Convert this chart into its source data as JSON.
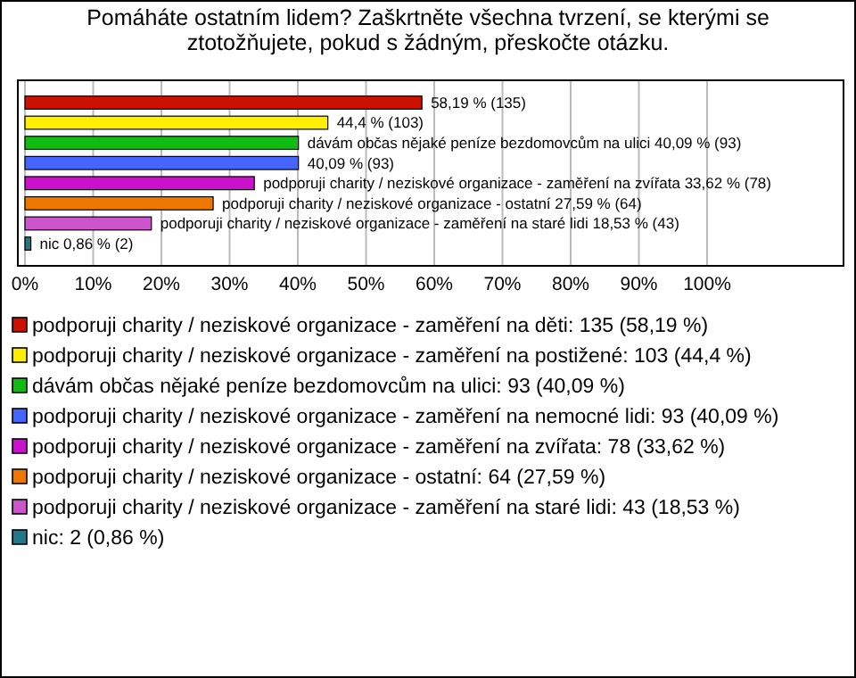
{
  "chart_data": {
    "type": "bar",
    "orientation": "horizontal",
    "title": "Pomáháte ostatním lidem? Zaškrtněte všechna tvrzení, se kterými se ztotožňujete, pokud s žádným, přeskočte otázku.",
    "categories": [
      null
    ],
    "series": [
      {
        "name": "podporuji charity / neziskové organizace - zaměření na děti: 135 (58,19 %)",
        "color": "#cc1100",
        "values": [
          58.19
        ],
        "value_labels": [
          "58,19 % (135)"
        ]
      },
      {
        "name": "podporuji charity / neziskové organizace - zaměření na postižené: 103 (44,4 %)",
        "color": "#ffee00",
        "values": [
          44.4
        ],
        "value_labels": [
          "44,4 % (103)"
        ]
      },
      {
        "name": "dávám občas nějaké peníze bezdomovcům na ulici: 93 (40,09 %)",
        "color": "#11bb11",
        "values": [
          40.09
        ],
        "value_labels": [
          "dávám občas nějaké peníze bezdomovcům na ulici 40,09 % (93)"
        ]
      },
      {
        "name": "podporuji charity / neziskové organizace - zaměření na nemocné lidi: 93 (40,09 %)",
        "color": "#4466ff",
        "values": [
          40.09
        ],
        "value_labels": [
          "40,09 % (93)"
        ]
      },
      {
        "name": "podporuji charity / neziskové organizace - zaměření na zvířata: 78 (33,62 %)",
        "color": "#cc11cc",
        "values": [
          33.62
        ],
        "value_labels": [
          "podporuji charity / neziskové organizace - zaměření na zvířata 33,62 % (78)"
        ]
      },
      {
        "name": "podporuji charity / neziskové organizace - ostatní: 64 (27,59 %)",
        "color": "#ee7700",
        "values": [
          27.59
        ],
        "value_labels": [
          "podporuji charity / neziskové organizace - ostatní 27,59 % (64)"
        ]
      },
      {
        "name": "podporuji charity / neziskové organizace - zaměření na staré lidi: 43 (18,53 %)",
        "color": "#cc55cc",
        "values": [
          18.53
        ],
        "value_labels": [
          "podporuji charity / neziskové organizace - zaměření na staré lidi 18,53 % (43)"
        ]
      },
      {
        "name": "nic: 2 (0,86 %)",
        "color": "#227788",
        "values": [
          0.86
        ],
        "value_labels": [
          "nic 0,86 % (2)"
        ]
      }
    ],
    "xlim": [
      0,
      120
    ],
    "xticks": [
      {
        "value": 0,
        "label": "0%"
      },
      {
        "value": 10,
        "label": "10%"
      },
      {
        "value": 20,
        "label": "20%"
      },
      {
        "value": 30,
        "label": "30%"
      },
      {
        "value": 40,
        "label": "40%"
      },
      {
        "value": 50,
        "label": "50%"
      },
      {
        "value": 60,
        "label": "60%"
      },
      {
        "value": 70,
        "label": "70%"
      },
      {
        "value": 80,
        "label": "80%"
      },
      {
        "value": 90,
        "label": "90%"
      },
      {
        "value": 100,
        "label": "100%"
      }
    ],
    "grid": "x",
    "legend": "bottom"
  }
}
